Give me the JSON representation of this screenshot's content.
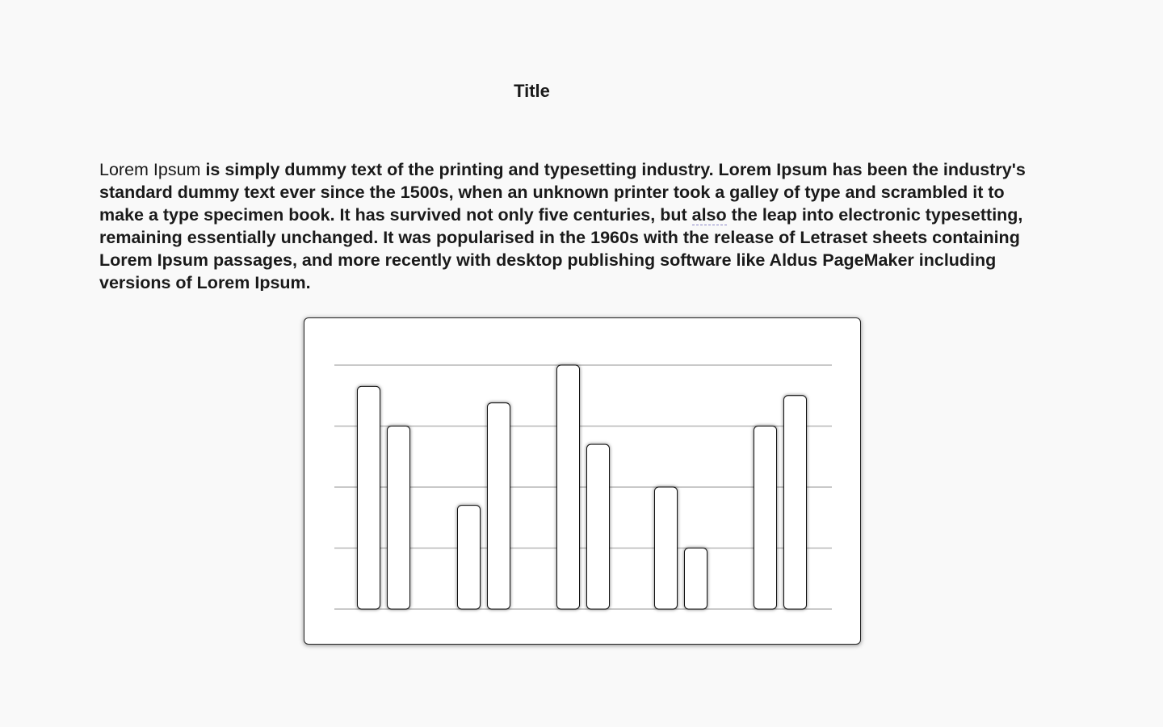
{
  "page": {
    "title": "Title"
  },
  "paragraph": {
    "lead": "Lorem Ipsum",
    "text_1": " is simply dummy text of the printing and typesetting industry. Lorem Ipsum has been the industry's standard dummy text ever since the 1500s, when an unknown printer took a galley of type and scrambled it to make a type specimen book. It has survived not only five centuries, but ",
    "also": "also",
    "text_2": " the leap into electronic typesetting, remaining essentially unchanged. It was popularised in the 1960s with the release of Letraset sheets containing Lorem Ipsum passages, and more recently with desktop publishing software like Aldus PageMaker including versions of Lorem Ipsum."
  },
  "chart_data": {
    "type": "bar",
    "grid": true,
    "legend": "none",
    "ylim": [
      0,
      4
    ],
    "groups": 5,
    "series": [
      {
        "values": [
          3.65,
          1.7,
          4.0,
          2.0,
          3.0
        ]
      },
      {
        "values": [
          3.0,
          3.38,
          2.7,
          1.0,
          3.5
        ]
      }
    ],
    "colors": {
      "bar_fill": "#ffffff",
      "bar_stroke": "#111111",
      "grid": "#b7b7b7"
    }
  }
}
